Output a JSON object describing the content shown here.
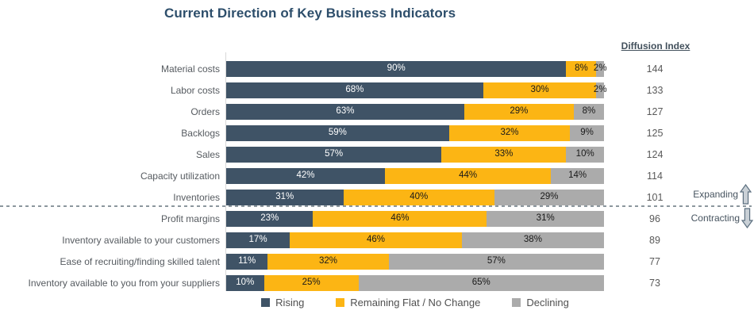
{
  "title": "Current Direction of Key Business Indicators",
  "diffusion_header": "Diffusion Index",
  "annotations": {
    "expanding_label": "Expanding",
    "contracting_label": "Contracting",
    "expanding_icon": "up-block-arrow-icon",
    "contracting_icon": "down-block-arrow-icon"
  },
  "colors": {
    "rising": "#3f5366",
    "flat": "#fcb514",
    "declining": "#ababab",
    "title_text": "#2d4e6b",
    "divider": "#8c979e"
  },
  "legend": [
    {
      "label": "Rising",
      "color": "#3f5366"
    },
    {
      "label": "Remaining Flat / No Change",
      "color": "#fcb514"
    },
    {
      "label": "Declining",
      "color": "#ababab"
    }
  ],
  "chart_data": {
    "type": "bar",
    "orientation": "horizontal_stacked",
    "title": "Current Direction of Key Business Indicators",
    "value_unit": "%",
    "axis_range": [
      0,
      100
    ],
    "grid": false,
    "legend_position": "bottom",
    "categories": [
      "Material costs",
      "Labor costs",
      "Orders",
      "Backlogs",
      "Sales",
      "Capacity utilization",
      "Inventories",
      "Profit margins",
      "Inventory available to your customers",
      "Ease of recruiting/finding skilled talent",
      "Inventory available to you from your suppliers"
    ],
    "series": [
      {
        "name": "Rising",
        "values": [
          90,
          68,
          63,
          59,
          57,
          42,
          31,
          23,
          17,
          11,
          10
        ]
      },
      {
        "name": "Remaining Flat / No Change",
        "values": [
          8,
          30,
          29,
          32,
          33,
          44,
          40,
          46,
          46,
          32,
          25
        ]
      },
      {
        "name": "Declining",
        "values": [
          2,
          2,
          8,
          9,
          10,
          14,
          29,
          31,
          38,
          57,
          65
        ]
      }
    ],
    "diffusion_index_header": "Diffusion Index",
    "diffusion_index": [
      144,
      133,
      127,
      125,
      124,
      114,
      101,
      96,
      89,
      77,
      73
    ],
    "divider_after_category_index": 6,
    "divider_meaning": {
      "above": "Expanding",
      "below": "Contracting"
    }
  }
}
